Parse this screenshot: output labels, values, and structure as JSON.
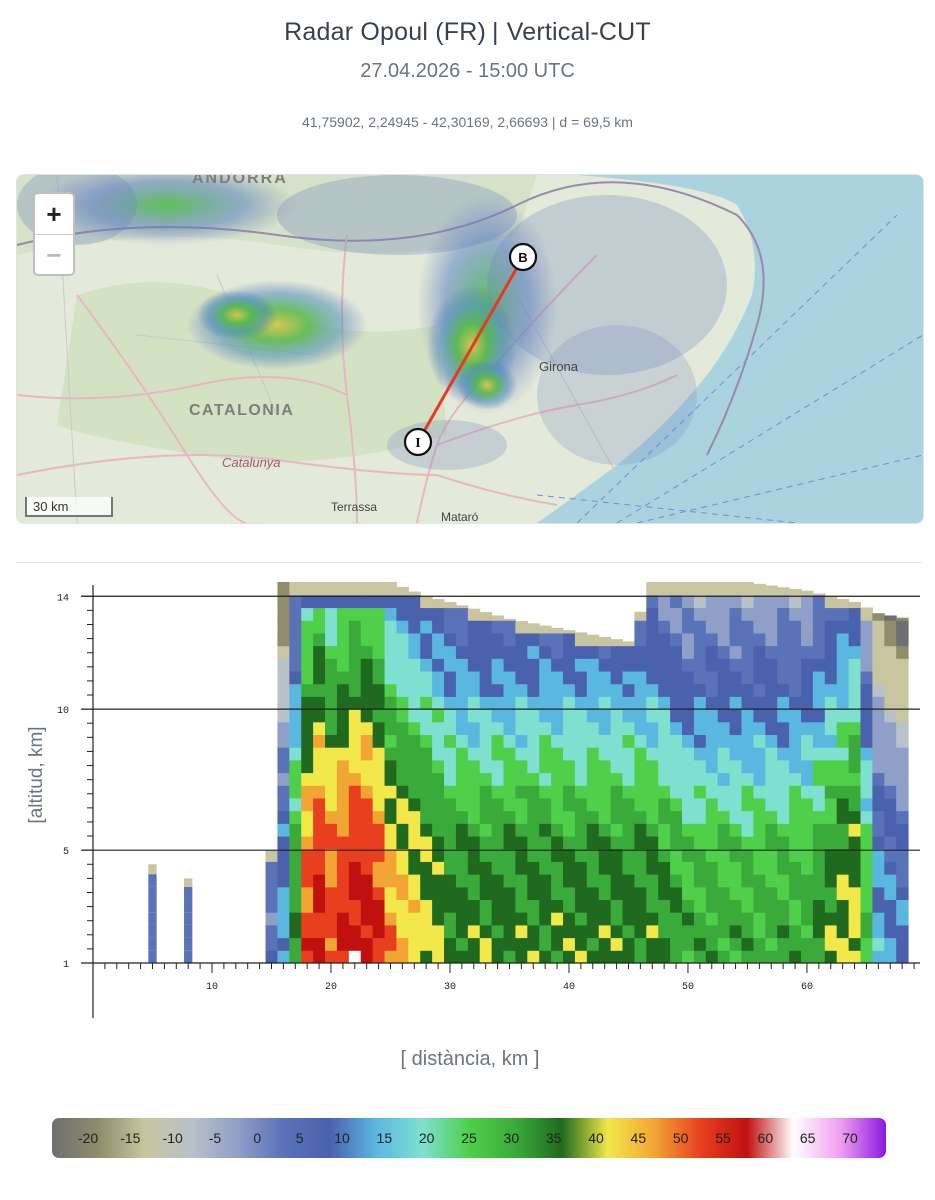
{
  "header": {
    "title_left": "Radar Opoul (FR)",
    "title_sep": "|",
    "title_right": "Vertical-CUT",
    "subtitle": "27.04.2026 - 15:00 UTC",
    "coords": "41,75902, 2,24945 - 42,30169, 2,66693 | d = 69,5 km"
  },
  "map": {
    "zoom_in": "+",
    "zoom_out": "−",
    "scale_label": "30 km",
    "places": {
      "andorra": "ANDORRA",
      "catalonia": "CATALONIA",
      "catalunya": "Catalunya",
      "girona": "Girona",
      "terrassa": "Terrassa",
      "mataro": "Mataró"
    },
    "marker_start": "I",
    "marker_end": "B",
    "line_color": "#e8381f"
  },
  "chart_data": {
    "type": "heatmap",
    "xlabel": "[ distància, km ]",
    "ylabel": "[altitud, km]",
    "xlim": [
      0,
      69.5
    ],
    "ylim": [
      1,
      14.4
    ],
    "x_ticks": [
      10,
      20,
      30,
      40,
      50,
      60
    ],
    "y_ticks": [
      1,
      5,
      10,
      14
    ],
    "h_lines": [
      5,
      10,
      14
    ],
    "profile": [
      {
        "x": 5,
        "top": 4.5,
        "maxz": 5
      },
      {
        "x": 8,
        "top": 4.0,
        "maxz": 5
      },
      {
        "x": 15,
        "top": 5.0,
        "maxz": 5
      },
      {
        "x": 16,
        "top": 14.5,
        "maxz": 15
      },
      {
        "x": 18,
        "top": 14.5,
        "maxz": 50
      },
      {
        "x": 19,
        "top": 14.5,
        "maxz": 55
      },
      {
        "x": 20,
        "top": 14.5,
        "maxz": 50
      },
      {
        "x": 22,
        "top": 14.5,
        "maxz": 55
      },
      {
        "x": 23.5,
        "top": 14.5,
        "maxz": 55
      },
      {
        "x": 25,
        "top": 14.5,
        "maxz": 45
      },
      {
        "x": 28,
        "top": 14.0,
        "maxz": 40
      },
      {
        "x": 30,
        "top": 13.8,
        "maxz": 35
      },
      {
        "x": 35,
        "top": 13.2,
        "maxz": 35
      },
      {
        "x": 40,
        "top": 12.8,
        "maxz": 35
      },
      {
        "x": 45,
        "top": 12.4,
        "maxz": 35
      },
      {
        "x": 47,
        "top": 14.5,
        "maxz": 35
      },
      {
        "x": 50,
        "top": 14.5,
        "maxz": 30
      },
      {
        "x": 55,
        "top": 14.5,
        "maxz": 30
      },
      {
        "x": 60,
        "top": 14.2,
        "maxz": 30
      },
      {
        "x": 64,
        "top": 13.8,
        "maxz": 40
      },
      {
        "x": 66,
        "top": 13.4,
        "maxz": 15
      },
      {
        "x": 68.5,
        "top": 13.2,
        "maxz": 10
      }
    ]
  },
  "legend": {
    "labels": [
      "-20",
      "-15",
      "-10",
      "-5",
      "0",
      "5",
      "10",
      "15",
      "20",
      "25",
      "30",
      "35",
      "40",
      "45",
      "50",
      "55",
      "60",
      "65",
      "70"
    ],
    "stops": [
      "#6f6f73",
      "#8f8d6a",
      "#c8c5a0",
      "#b9c1c9",
      "#8f9fc7",
      "#5a72b8",
      "#4a62ad",
      "#5ab8e0",
      "#7fe0d0",
      "#4fcf4a",
      "#3aab3a",
      "#1f6a1f",
      "#f2e84a",
      "#f2a533",
      "#e8401f",
      "#c01010",
      "#ffffff",
      "#f0a0f0",
      "#8a1ae0"
    ]
  }
}
